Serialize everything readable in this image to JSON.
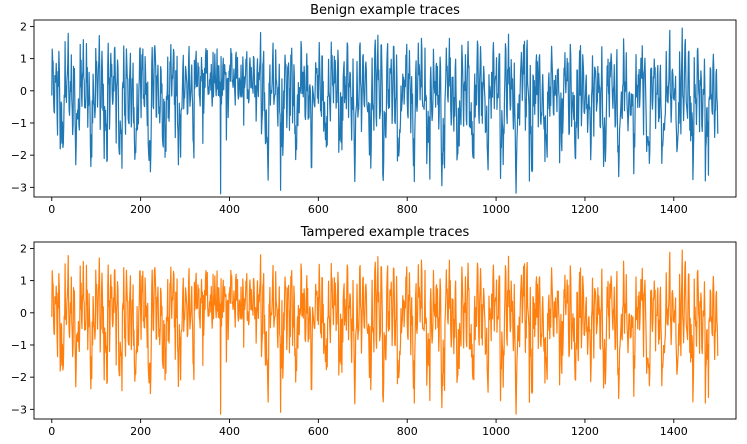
{
  "chart_data": [
    {
      "type": "line",
      "title": "Benign example traces",
      "xlabel": "",
      "ylabel": "",
      "xlim": [
        -40,
        1540
      ],
      "ylim": [
        -3.3,
        2.2
      ],
      "xticks": [
        0,
        200,
        400,
        600,
        800,
        1000,
        1200,
        1400
      ],
      "yticks": [
        -3,
        -2,
        -1,
        0,
        1,
        2
      ],
      "grid": false,
      "color": "#1f77b4",
      "n_points": 1500,
      "x_range": [
        0,
        1499
      ],
      "y_extent": [
        -3.2,
        1.95
      ],
      "seed": 11,
      "series": [
        {
          "values": [
            0.45,
            -0.3,
            0.6,
            -0.1,
            0.25
          ]
        }
      ]
    },
    {
      "type": "line",
      "title": "Tampered example traces",
      "xlabel": "",
      "ylabel": "",
      "xlim": [
        -40,
        1540
      ],
      "ylim": [
        -3.3,
        2.2
      ],
      "xticks": [
        0,
        200,
        400,
        600,
        800,
        1000,
        1200,
        1400
      ],
      "yticks": [
        -3,
        -2,
        -1,
        0,
        1,
        2
      ],
      "grid": false,
      "color": "#ff7f0e",
      "n_points": 1500,
      "x_range": [
        0,
        1499
      ],
      "y_extent": [
        -3.15,
        1.95
      ],
      "seed": 11,
      "series": [
        {
          "values": [
            0.45,
            -0.3,
            0.6,
            -0.1,
            0.25
          ]
        }
      ]
    }
  ]
}
